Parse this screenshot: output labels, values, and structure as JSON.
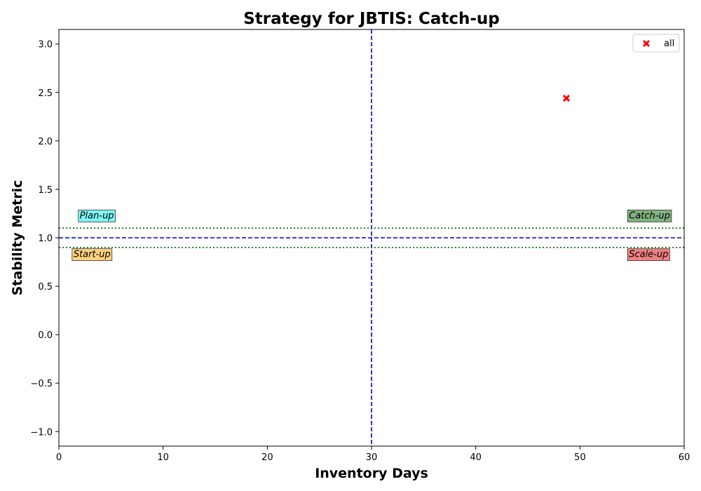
{
  "chart_data": {
    "type": "scatter",
    "title": "Strategy for JBTIS: Catch-up",
    "xlabel": "Inventory Days",
    "ylabel": "Stability Metric",
    "xlim": [
      0,
      60
    ],
    "ylim": [
      -1.15,
      3.15
    ],
    "xticks": [
      0,
      10,
      20,
      30,
      40,
      50,
      60
    ],
    "yticks": [
      -1.0,
      -0.5,
      0.0,
      0.5,
      1.0,
      1.5,
      2.0,
      2.5,
      3.0
    ],
    "ytick_labels": [
      "−1.0",
      "−0.5",
      "0.0",
      "0.5",
      "1.0",
      "1.5",
      "2.0",
      "2.5",
      "3.0"
    ],
    "grid": false,
    "legend_position": "top-right",
    "series": [
      {
        "name": "all",
        "marker": "x",
        "color": "#ff0000",
        "points": [
          {
            "x": 48.7,
            "y": 2.44
          }
        ]
      }
    ],
    "reference_lines": [
      {
        "orientation": "vertical",
        "value": 30,
        "style": "dashed",
        "color": "#0000cc"
      },
      {
        "orientation": "horizontal",
        "value": 1.0,
        "style": "dashed",
        "color": "#0000cc"
      },
      {
        "orientation": "horizontal",
        "value": 1.1,
        "style": "dotted",
        "color": "#006400"
      },
      {
        "orientation": "horizontal",
        "value": 0.9,
        "style": "dotted",
        "color": "#006400"
      }
    ],
    "annotations": [
      {
        "text": "Plan-up",
        "x": 2.0,
        "y": 1.2,
        "bg": "#7ff5f5"
      },
      {
        "text": "Catch-up",
        "x": 54.7,
        "y": 1.2,
        "bg": "#80b380"
      },
      {
        "text": "Start-up",
        "x": 1.4,
        "y": 0.8,
        "bg": "#ffd280"
      },
      {
        "text": "Scale-up",
        "x": 54.7,
        "y": 0.8,
        "bg": "#f08080"
      }
    ]
  }
}
